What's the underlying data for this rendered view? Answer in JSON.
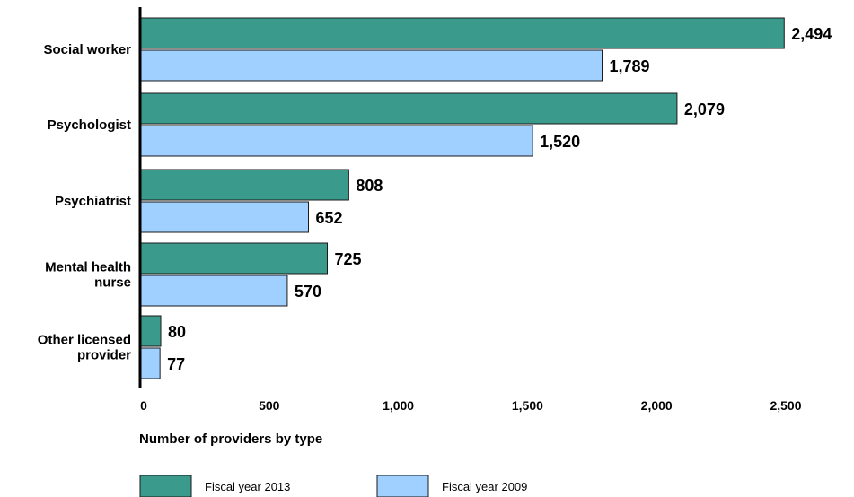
{
  "chart_data": {
    "type": "bar",
    "orientation": "horizontal",
    "categories": [
      [
        "Social worker"
      ],
      [
        "Psychologist"
      ],
      [
        "Psychiatrist"
      ],
      [
        "Mental health",
        "nurse"
      ],
      [
        "Other licensed",
        "provider"
      ]
    ],
    "series": [
      {
        "name": "Fiscal year 2013",
        "color": "#3a9a8c",
        "values": [
          2494,
          2079,
          808,
          725,
          80
        ],
        "value_labels": [
          "2,494",
          "2,079",
          "808",
          "725",
          "80"
        ]
      },
      {
        "name": "Fiscal year 2009",
        "color": "#9fd0ff",
        "values": [
          1789,
          1520,
          652,
          570,
          77
        ],
        "value_labels": [
          "1,789",
          "1,520",
          "652",
          "570",
          "77"
        ]
      }
    ],
    "xlabel": "Number of providers by type",
    "xlim": [
      0,
      2500
    ],
    "xticks": [
      0,
      500,
      1000,
      1500,
      2000,
      2500
    ],
    "xtick_labels": [
      "0",
      "500",
      "1,000",
      "1,500",
      "2,000",
      "2,500"
    ],
    "grid": false,
    "legend_position": "bottom-left"
  }
}
